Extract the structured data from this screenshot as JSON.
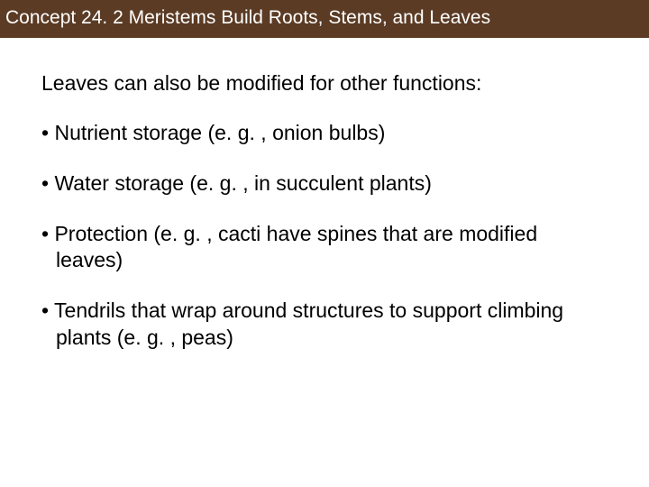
{
  "header": {
    "title": "Concept 24. 2 Meristems Build Roots, Stems, and Leaves",
    "background_color": "#5b3b24",
    "text_color": "#ffffff",
    "font_size": 21
  },
  "content": {
    "intro": "Leaves can also be modified for other functions:",
    "bullets": [
      "Nutrient storage (e. g. , onion bulbs)",
      "Water storage (e. g. , in succulent plants)",
      "Protection (e. g. , cacti have spines that are modified leaves)",
      "Tendrils that wrap around structures to support climbing plants (e. g. , peas)"
    ],
    "text_color": "#000000",
    "font_size": 23,
    "background_color": "#ffffff"
  }
}
